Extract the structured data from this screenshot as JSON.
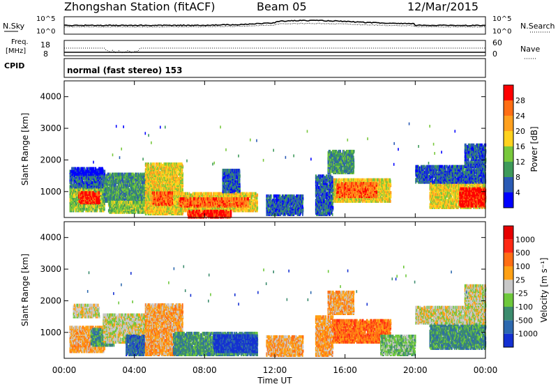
{
  "header": {
    "station": "Zhongshan Station (fitACF)",
    "beam": "Beam 05",
    "date": "12/Mar/2015"
  },
  "summary": {
    "nsky_label": "N.Sky",
    "nsearch_label": "N.Search",
    "noise_tick_top": "10^5",
    "noise_tick_bottom": "10^0",
    "freq_label_1": "Freq.",
    "freq_label_2": "[MHz]",
    "freq_tick_top": "18",
    "freq_tick_bottom": "8",
    "nave_label": "Nave",
    "nave_tick_top": "60",
    "nave_tick_bottom": "0",
    "cpid_label": "CPID",
    "cpid_text": "normal (fast stereo) 153"
  },
  "chart_data": [
    {
      "type": "heatmap",
      "name": "power",
      "ylabel": "Slant Range [km]",
      "xlabel": "Time UT",
      "xlim": [
        0,
        24
      ],
      "ylim": [
        180,
        4500
      ],
      "x_ticks": [
        "00:00",
        "04:00",
        "08:00",
        "12:00",
        "16:00",
        "20:00",
        "00:00"
      ],
      "y_ticks": [
        "1000",
        "2000",
        "3000",
        "4000"
      ],
      "colorbar": {
        "label": "Power [dB]",
        "ticks": [
          "4",
          "8",
          "12",
          "16",
          "20",
          "24",
          "28"
        ],
        "colors": [
          "#0000ff",
          "#2a5ab4",
          "#3e9a5a",
          "#78c83c",
          "#ffd21e",
          "#ffa01e",
          "#ff6e14",
          "#ff0000"
        ]
      },
      "blobs": [
        {
          "t0": 0.3,
          "t1": 2.3,
          "r0": 400,
          "r1": 1200,
          "c": 3
        },
        {
          "t0": 0.3,
          "t1": 2.3,
          "r0": 1150,
          "r1": 1650,
          "c": 1
        },
        {
          "t0": 0.8,
          "t1": 2.0,
          "r0": 650,
          "r1": 1000,
          "c": 7
        },
        {
          "t0": 0.4,
          "t1": 2.2,
          "r0": 1550,
          "r1": 1750,
          "c": 0
        },
        {
          "t0": 2.2,
          "t1": 5.2,
          "r0": 700,
          "r1": 1600,
          "c": 2
        },
        {
          "t0": 2.5,
          "t1": 4.8,
          "r0": 350,
          "r1": 700,
          "c": 3
        },
        {
          "t0": 4.6,
          "t1": 6.7,
          "r0": 300,
          "r1": 1900,
          "c": 4
        },
        {
          "t0": 5.0,
          "t1": 6.2,
          "r0": 600,
          "r1": 1000,
          "c": 6
        },
        {
          "t0": 6.2,
          "t1": 11.0,
          "r0": 400,
          "r1": 950,
          "c": 4
        },
        {
          "t0": 6.5,
          "t1": 10.5,
          "r0": 550,
          "r1": 800,
          "c": 6
        },
        {
          "t0": 7.0,
          "t1": 9.5,
          "r0": 200,
          "r1": 400,
          "c": 7
        },
        {
          "t0": 9.0,
          "t1": 10.0,
          "r0": 1000,
          "r1": 1700,
          "c": 1
        },
        {
          "t0": 11.5,
          "t1": 13.6,
          "r0": 280,
          "r1": 900,
          "c": 1
        },
        {
          "t0": 15.3,
          "t1": 18.6,
          "r0": 700,
          "r1": 1400,
          "c": 4
        },
        {
          "t0": 15.5,
          "t1": 17.8,
          "r0": 850,
          "r1": 1300,
          "c": 6
        },
        {
          "t0": 15.0,
          "t1": 16.5,
          "r0": 1600,
          "r1": 2300,
          "c": 2
        },
        {
          "t0": 14.3,
          "t1": 15.3,
          "r0": 280,
          "r1": 1500,
          "c": 1
        },
        {
          "t0": 20.8,
          "t1": 24.0,
          "r0": 500,
          "r1": 1300,
          "c": 4
        },
        {
          "t0": 22.5,
          "t1": 24.0,
          "r0": 550,
          "r1": 1100,
          "c": 7
        },
        {
          "t0": 20.0,
          "t1": 24.0,
          "r0": 1300,
          "r1": 1800,
          "c": 1
        },
        {
          "t0": 22.8,
          "t1": 24.0,
          "r0": 1800,
          "r1": 2500,
          "c": 1
        }
      ]
    },
    {
      "type": "heatmap",
      "name": "velocity",
      "ylabel": "Slant Range [km]",
      "xlabel": "Time UT",
      "xlim": [
        0,
        24
      ],
      "ylim": [
        180,
        4500
      ],
      "x_ticks": [
        "00:00",
        "04:00",
        "08:00",
        "12:00",
        "16:00",
        "20:00",
        "00:00"
      ],
      "y_ticks": [
        "1000",
        "2000",
        "3000",
        "4000"
      ],
      "colorbar": {
        "label": "Velocity [m s⁻¹]",
        "ticks": [
          "1000",
          "500",
          "100",
          "25",
          "-25",
          "-100",
          "-500",
          "-1000"
        ],
        "colors": [
          "#1430d2",
          "#2d69af",
          "#3c8c6e",
          "#6ec83c",
          "#c8c8c8",
          "#ffa014",
          "#ff6e14",
          "#ff2814",
          "#e60000"
        ]
      },
      "blobs": [
        {
          "t0": 0.3,
          "t1": 2.3,
          "r0": 400,
          "r1": 1200,
          "c": 5
        },
        {
          "t0": 0.5,
          "t1": 2.0,
          "r0": 1500,
          "r1": 1900,
          "c": 4
        },
        {
          "t0": 1.5,
          "t1": 2.8,
          "r0": 600,
          "r1": 1100,
          "c": 2
        },
        {
          "t0": 2.2,
          "t1": 5.2,
          "r0": 700,
          "r1": 1600,
          "c": 4
        },
        {
          "t0": 3.5,
          "t1": 5.0,
          "r0": 300,
          "r1": 900,
          "c": 1
        },
        {
          "t0": 4.6,
          "t1": 6.7,
          "r0": 300,
          "r1": 1900,
          "c": 5
        },
        {
          "t0": 6.2,
          "t1": 11.0,
          "r0": 300,
          "r1": 1000,
          "c": 2
        },
        {
          "t0": 8.5,
          "t1": 11.0,
          "r0": 400,
          "r1": 900,
          "c": 0
        },
        {
          "t0": 11.5,
          "t1": 13.6,
          "r0": 280,
          "r1": 900,
          "c": 5
        },
        {
          "t0": 15.3,
          "t1": 18.6,
          "r0": 700,
          "r1": 1400,
          "c": 6
        },
        {
          "t0": 15.0,
          "t1": 16.5,
          "r0": 1600,
          "r1": 2300,
          "c": 5
        },
        {
          "t0": 14.3,
          "t1": 15.3,
          "r0": 280,
          "r1": 1500,
          "c": 5
        },
        {
          "t0": 20.8,
          "t1": 24.0,
          "r0": 500,
          "r1": 1300,
          "c": 2
        },
        {
          "t0": 20.0,
          "t1": 24.0,
          "r0": 1300,
          "r1": 1800,
          "c": 4
        },
        {
          "t0": 22.8,
          "t1": 24.0,
          "r0": 1800,
          "r1": 2500,
          "c": 4
        },
        {
          "t0": 18.0,
          "t1": 20.0,
          "r0": 300,
          "r1": 900,
          "c": 3
        }
      ]
    }
  ]
}
